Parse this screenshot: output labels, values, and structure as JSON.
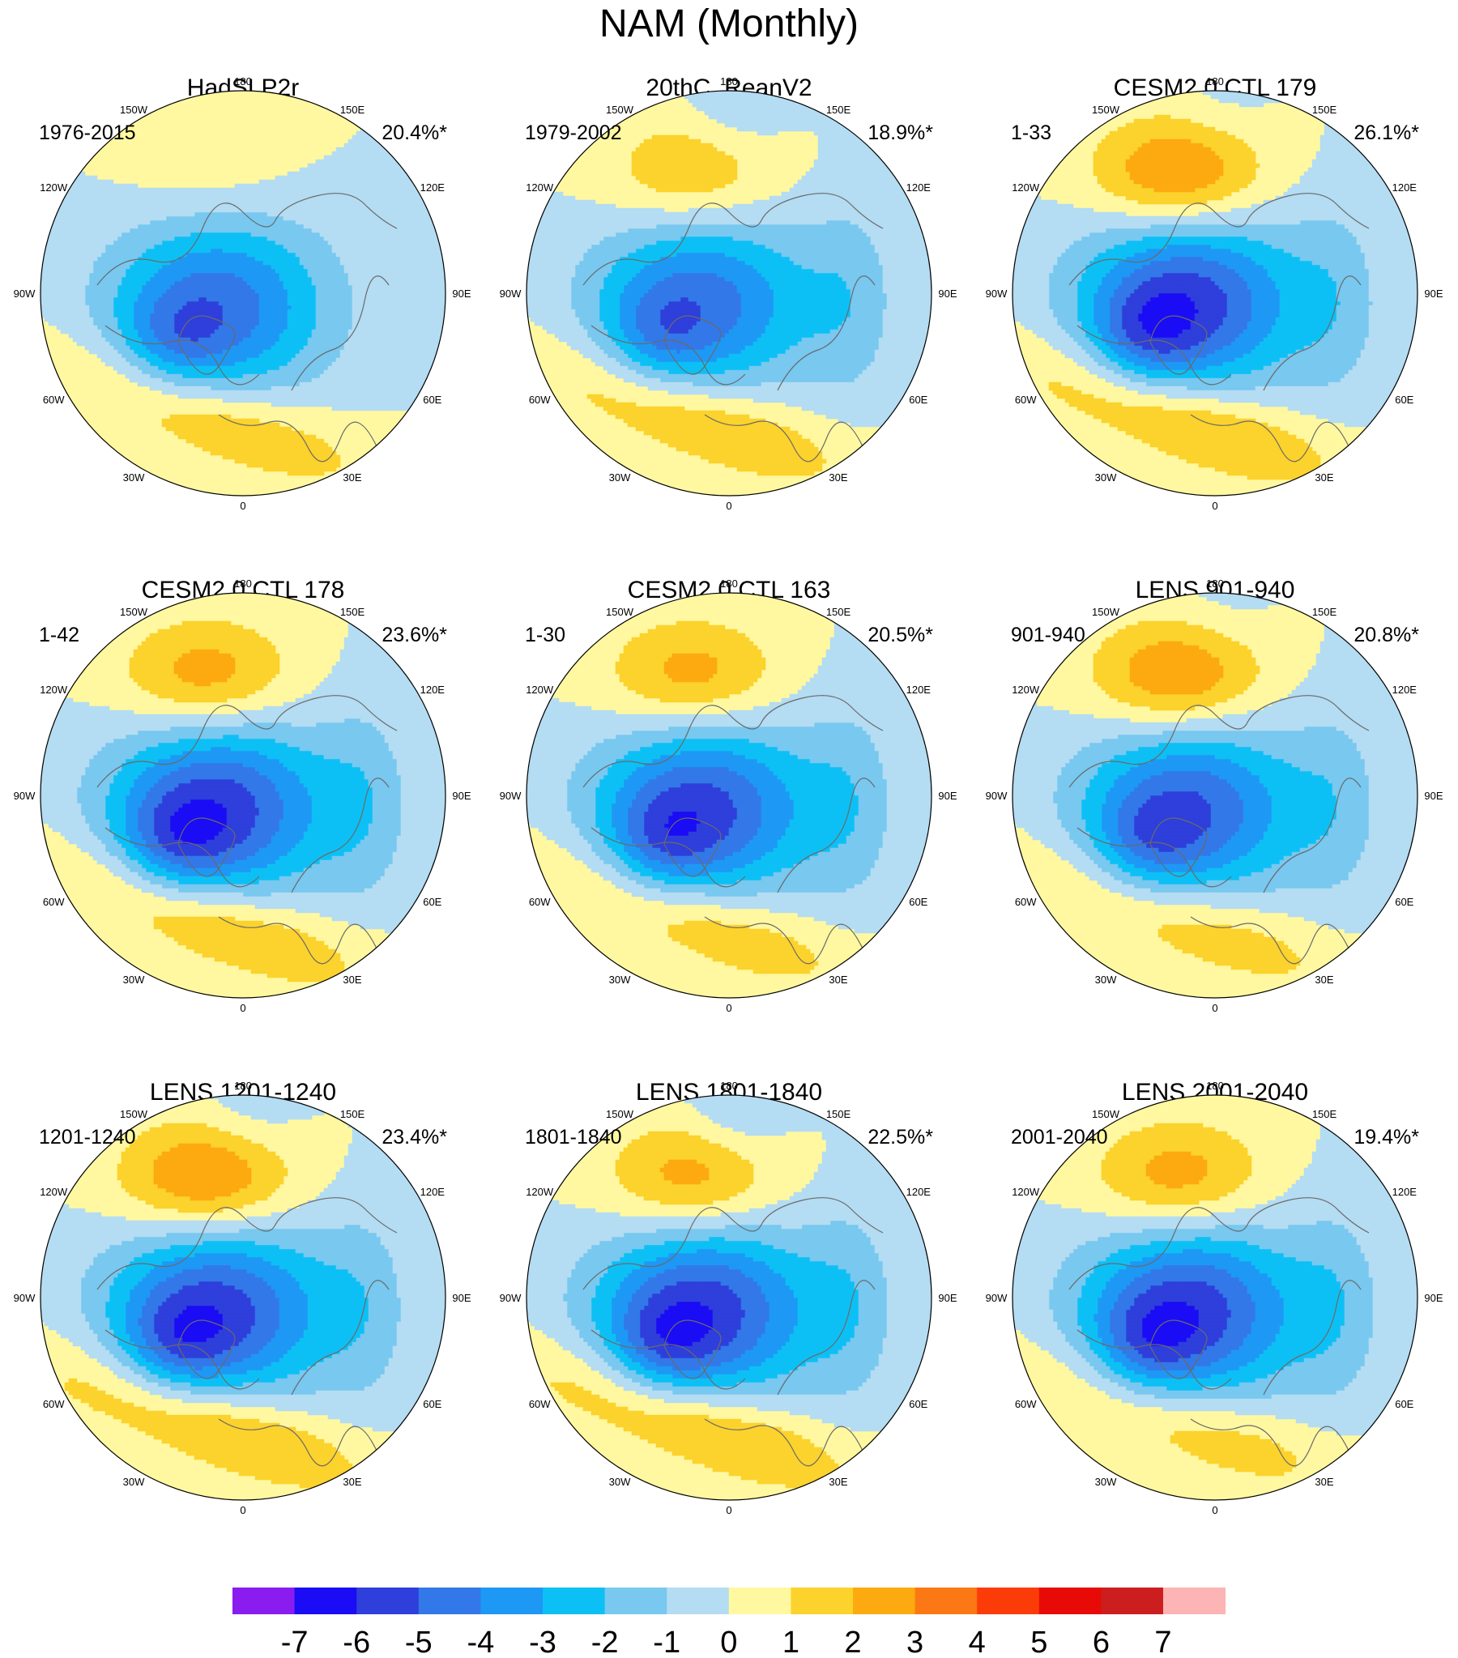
{
  "title": "NAM (Monthly)",
  "colorbar": {
    "levels": [
      -7,
      -6,
      -5,
      -4,
      -3,
      -2,
      -1,
      0,
      1,
      2,
      3,
      4,
      5,
      6,
      7
    ],
    "tick_labels": [
      "-7",
      "-6",
      "-5",
      "-4",
      "-3",
      "-2",
      "-1",
      "0",
      "1",
      "2",
      "3",
      "4",
      "5",
      "6",
      "7"
    ],
    "colors": [
      "#8a1cf0",
      "#1a0cf5",
      "#2e3fdb",
      "#3278e8",
      "#1e98f5",
      "#0cc0f5",
      "#78c8f0",
      "#b4dcf2",
      "#fff8a0",
      "#fcd22c",
      "#fcaa10",
      "#fc7814",
      "#fc3c08",
      "#e80a06",
      "#cc1e1e",
      "#fcb4b4"
    ]
  },
  "longitude_labels": [
    "180",
    "150E",
    "120E",
    "90E",
    "60E",
    "30E",
    "0",
    "30W",
    "60W",
    "90W",
    "120W",
    "150W"
  ],
  "panels": [
    {
      "title": "HadSLP2r",
      "period": "1976-2015",
      "explained_variance": "20.4%*",
      "field": {
        "neg_min": -4.6,
        "neg_dir_deg": 150,
        "pac_max": 0.9,
        "atl_max": 2.3,
        "eurasia_neg": 0.0,
        "pacific_neg": 0.0
      }
    },
    {
      "title": "20thC_ReanV2",
      "period": "1979-2002",
      "explained_variance": "18.9%*",
      "field": {
        "neg_min": -4.5,
        "neg_dir_deg": 160,
        "pac_max": 2.3,
        "atl_max": 2.4,
        "eurasia_neg": 1.0,
        "pacific_neg": 0.6
      }
    },
    {
      "title": "CESM2.0 CTL 179",
      "period": "1-33",
      "explained_variance": "26.1%*",
      "field": {
        "neg_min": -5.6,
        "neg_dir_deg": 160,
        "pac_max": 3.6,
        "atl_max": 2.7,
        "eurasia_neg": 0.9,
        "pacific_neg": 0.3
      }
    },
    {
      "title": "CESM2.0 CTL 178",
      "period": "1-42",
      "explained_variance": "23.6%*",
      "field": {
        "neg_min": -5.6,
        "neg_dir_deg": 150,
        "pac_max": 2.9,
        "atl_max": 2.6,
        "eurasia_neg": 1.0,
        "pacific_neg": 0.0
      }
    },
    {
      "title": "CESM2.0 CTL 163",
      "period": "1-30",
      "explained_variance": "20.5%*",
      "field": {
        "neg_min": -5.3,
        "neg_dir_deg": 150,
        "pac_max": 2.8,
        "atl_max": 2.3,
        "eurasia_neg": 1.0,
        "pacific_neg": 0.0
      }
    },
    {
      "title": "LENS 901-940",
      "period": "901-940",
      "explained_variance": "20.8%*",
      "field": {
        "neg_min": -5.0,
        "neg_dir_deg": 150,
        "pac_max": 3.4,
        "atl_max": 2.2,
        "eurasia_neg": 0.9,
        "pacific_neg": 0.3
      }
    },
    {
      "title": "LENS 1201-1240",
      "period": "1201-1240",
      "explained_variance": "23.4%*",
      "field": {
        "neg_min": -5.5,
        "neg_dir_deg": 150,
        "pac_max": 3.6,
        "atl_max": 2.8,
        "eurasia_neg": 0.9,
        "pacific_neg": 0.5
      }
    },
    {
      "title": "LENS 1801-1840",
      "period": "1801-1840",
      "explained_variance": "22.5%*",
      "field": {
        "neg_min": -5.6,
        "neg_dir_deg": 150,
        "pac_max": 2.9,
        "atl_max": 2.8,
        "eurasia_neg": 1.0,
        "pacific_neg": 0.7
      }
    },
    {
      "title": "LENS 2001-2040",
      "period": "2001-2040",
      "explained_variance": "19.4%*",
      "field": {
        "neg_min": -5.6,
        "neg_dir_deg": 150,
        "pac_max": 2.9,
        "atl_max": 2.2,
        "eurasia_neg": 1.0,
        "pacific_neg": 0.0
      }
    }
  ]
}
